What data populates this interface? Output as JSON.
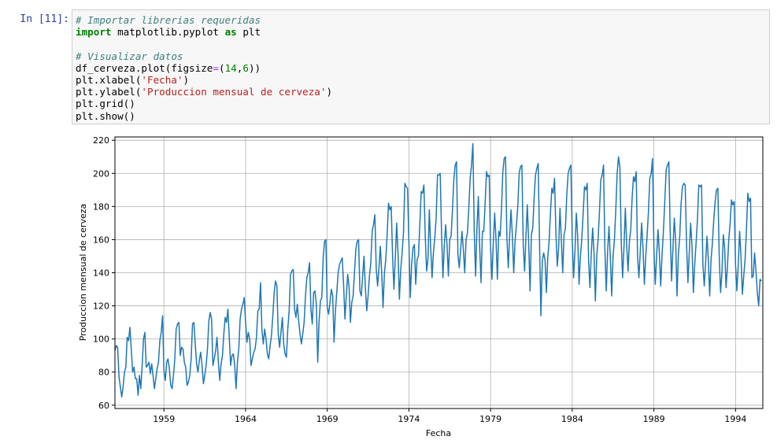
{
  "cell": {
    "prompt": "In [11]:",
    "code_lines": [
      [
        {
          "t": "# Importar librerias requeridas",
          "c": "cm"
        }
      ],
      [
        {
          "t": "import",
          "c": "kw"
        },
        {
          "t": " matplotlib.pyplot ",
          "c": ""
        },
        {
          "t": "as",
          "c": "kw"
        },
        {
          "t": " plt",
          "c": ""
        }
      ],
      [
        {
          "t": "",
          "c": ""
        }
      ],
      [
        {
          "t": "# Visualizar datos",
          "c": "cm"
        }
      ],
      [
        {
          "t": "df_cerveza.plot(figsize",
          "c": ""
        },
        {
          "t": "=",
          "c": "op"
        },
        {
          "t": "(",
          "c": ""
        },
        {
          "t": "14",
          "c": "nu"
        },
        {
          "t": ",",
          "c": ""
        },
        {
          "t": "6",
          "c": "nu"
        },
        {
          "t": "))",
          "c": ""
        }
      ],
      [
        {
          "t": "plt.xlabel(",
          "c": ""
        },
        {
          "t": "'Fecha'",
          "c": "st"
        },
        {
          "t": ")",
          "c": ""
        }
      ],
      [
        {
          "t": "plt.ylabel(",
          "c": ""
        },
        {
          "t": "'Produccion mensual de cerveza'",
          "c": "st"
        },
        {
          "t": ")",
          "c": ""
        }
      ],
      [
        {
          "t": "plt.grid()",
          "c": ""
        }
      ],
      [
        {
          "t": "plt.show()",
          "c": ""
        }
      ]
    ]
  },
  "chart_data": {
    "type": "line",
    "xlabel": "Fecha",
    "ylabel": "Produccion mensual de cerveza",
    "xlim": [
      1956.0,
      1995.67
    ],
    "ylim": [
      58,
      222
    ],
    "xticks": [
      1959,
      1964,
      1969,
      1974,
      1979,
      1984,
      1989,
      1994
    ],
    "yticks": [
      60,
      80,
      100,
      120,
      140,
      160,
      180,
      200,
      220
    ],
    "grid": true,
    "line_color": "#1f77b4",
    "x_start": "1956-01",
    "x_end": "1995-08",
    "frequency": "monthly",
    "values": [
      93,
      96,
      95,
      77,
      71,
      65,
      71,
      80,
      83,
      101,
      99,
      107,
      94,
      80,
      83,
      76,
      76,
      66,
      78,
      70,
      84,
      100,
      104,
      83,
      84,
      86,
      79,
      85,
      78,
      70,
      76,
      82,
      86,
      99,
      104,
      114,
      81,
      75,
      86,
      88,
      82,
      72,
      70,
      78,
      88,
      106,
      109,
      110,
      90,
      95,
      94,
      86,
      83,
      72,
      74,
      78,
      88,
      109,
      110,
      97,
      85,
      80,
      87,
      92,
      84,
      73,
      78,
      84,
      94,
      111,
      116,
      112,
      84,
      88,
      93,
      101,
      86,
      75,
      85,
      90,
      103,
      113,
      110,
      118,
      101,
      84,
      90,
      91,
      84,
      70,
      86,
      94,
      112,
      118,
      121,
      125,
      110,
      98,
      104,
      100,
      84,
      88,
      92,
      94,
      101,
      117,
      118,
      134,
      105,
      97,
      106,
      100,
      91,
      88,
      96,
      102,
      114,
      128,
      135,
      132,
      103,
      95,
      104,
      113,
      97,
      91,
      89,
      106,
      117,
      139,
      141,
      142,
      118,
      113,
      121,
      111,
      103,
      97,
      103,
      110,
      126,
      137,
      140,
      146,
      118,
      109,
      128,
      129,
      121,
      86,
      111,
      123,
      125,
      149,
      159,
      160,
      119,
      115,
      122,
      130,
      126,
      98,
      117,
      128,
      140,
      145,
      147,
      149,
      133,
      112,
      126,
      139,
      132,
      110,
      122,
      126,
      140,
      154,
      159,
      160,
      129,
      126,
      138,
      150,
      131,
      117,
      126,
      138,
      146,
      165,
      169,
      175,
      142,
      132,
      143,
      156,
      140,
      119,
      140,
      148,
      163,
      182,
      178,
      180,
      150,
      130,
      149,
      170,
      152,
      124,
      142,
      152,
      164,
      194,
      192,
      191,
      158,
      125,
      145,
      155,
      157,
      133,
      148,
      150,
      169,
      189,
      188,
      193,
      162,
      141,
      148,
      178,
      155,
      137,
      152,
      161,
      173,
      199,
      199,
      200,
      163,
      137,
      157,
      169,
      157,
      138,
      160,
      162,
      178,
      196,
      205,
      207,
      151,
      143,
      154,
      165,
      154,
      140,
      160,
      164,
      179,
      197,
      205,
      218,
      165,
      138,
      167,
      186,
      155,
      134,
      165,
      165,
      182,
      201,
      198,
      199,
      156,
      136,
      158,
      176,
      160,
      136,
      165,
      162,
      178,
      201,
      209,
      210,
      161,
      143,
      162,
      178,
      163,
      140,
      159,
      169,
      180,
      200,
      204,
      205,
      157,
      141,
      162,
      181,
      158,
      129,
      163,
      167,
      185,
      199,
      203,
      206,
      157,
      114,
      147,
      152,
      148,
      128,
      149,
      159,
      176,
      191,
      188,
      197,
      164,
      144,
      155,
      179,
      160,
      140,
      163,
      167,
      187,
      200,
      203,
      205,
      160,
      137,
      153,
      176,
      162,
      133,
      150,
      160,
      175,
      192,
      190,
      194,
      148,
      131,
      152,
      167,
      152,
      123,
      150,
      160,
      177,
      196,
      199,
      205,
      154,
      129,
      153,
      168,
      149,
      126,
      150,
      160,
      178,
      200,
      210,
      204,
      159,
      137,
      155,
      179,
      157,
      141,
      159,
      166,
      185,
      198,
      195,
      201,
      150,
      137,
      153,
      170,
      155,
      133,
      150,
      162,
      177,
      197,
      200,
      209,
      155,
      133,
      150,
      166,
      152,
      132,
      151,
      165,
      183,
      202,
      205,
      207,
      164,
      135,
      155,
      173,
      159,
      126,
      151,
      162,
      182,
      192,
      194,
      193,
      157,
      134,
      152,
      170,
      156,
      128,
      145,
      158,
      172,
      193,
      192,
      193,
      145,
      132,
      146,
      162,
      148,
      126,
      148,
      158,
      172,
      183,
      190,
      191,
      150,
      128,
      140,
      163,
      155,
      131,
      143,
      160,
      170,
      184,
      181,
      183,
      145,
      129,
      145,
      165,
      150,
      127,
      138,
      148,
      166,
      188,
      183,
      185,
      137,
      138,
      152,
      141,
      128,
      120,
      136,
      135
    ]
  }
}
